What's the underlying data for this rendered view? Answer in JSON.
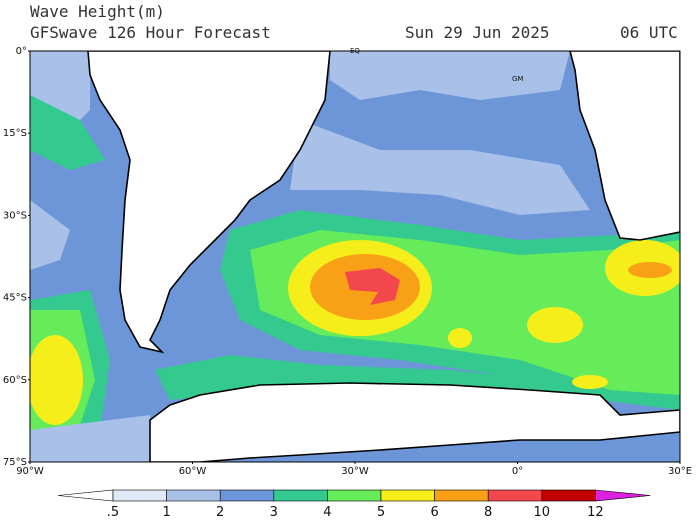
{
  "header": {
    "title": "Wave Height(m)",
    "model": "GFSwave 126 Hour Forecast",
    "date": "Sun 29 Jun 2025",
    "time": "06 UTC"
  },
  "map": {
    "lat_labels": [
      "0°",
      "15°S",
      "30°S",
      "45°S",
      "60°S",
      "75°S"
    ],
    "lon_labels": [
      "90°W",
      "60°W",
      "30°W",
      "0°",
      "30°E"
    ],
    "place_labels": [
      "EQ",
      "GM"
    ]
  },
  "colorbar": {
    "labels": [
      ".5",
      "1",
      "2",
      "3",
      "4",
      "5",
      "6",
      "8",
      "10",
      "12"
    ],
    "colors": [
      "#ffffff",
      "#dfe9f7",
      "#a9c1e8",
      "#6d96d8",
      "#34c98e",
      "#66ec5a",
      "#f6ee1a",
      "#f8a116",
      "#f2474c",
      "#c30000",
      "#df1fdf"
    ]
  }
}
